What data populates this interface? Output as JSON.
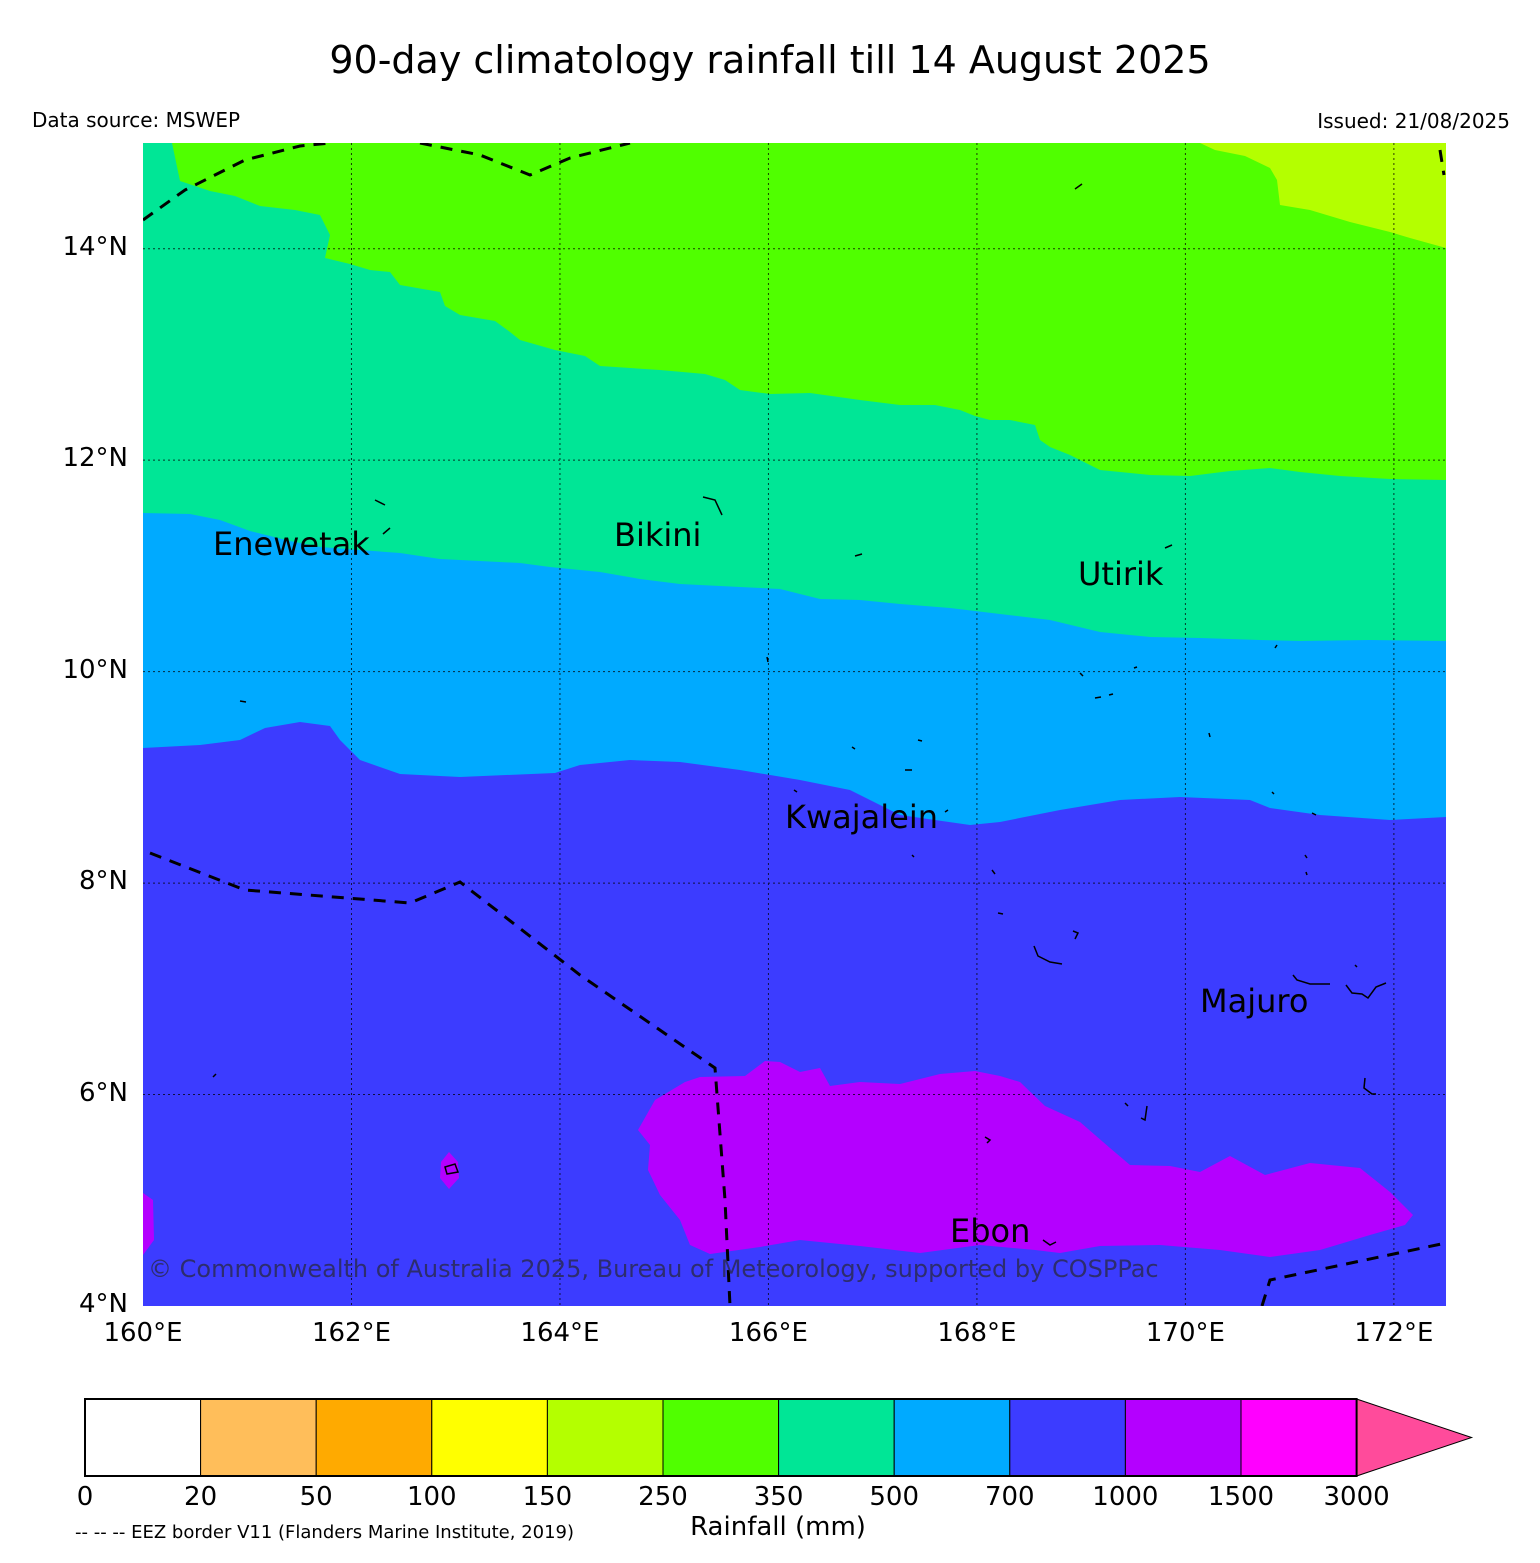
{
  "header": {
    "title": "90-day climatology rainfall till 14 August 2025",
    "source": "Data source: MSWEP",
    "issued": "Issued: 21/08/2025"
  },
  "map": {
    "lon_range": [
      160,
      172.5
    ],
    "lat_range": [
      4,
      15
    ],
    "gridlines": true,
    "lon_ticks": [
      {
        "value": 160,
        "label": "160°E"
      },
      {
        "value": 162,
        "label": "162°E"
      },
      {
        "value": 164,
        "label": "164°E"
      },
      {
        "value": 166,
        "label": "166°E"
      },
      {
        "value": 168,
        "label": "168°E"
      },
      {
        "value": 170,
        "label": "170°E"
      },
      {
        "value": 172,
        "label": "172°E"
      }
    ],
    "lat_ticks": [
      {
        "value": 4,
        "label": "4°N"
      },
      {
        "value": 6,
        "label": "6°N"
      },
      {
        "value": 8,
        "label": "8°N"
      },
      {
        "value": 10,
        "label": "10°N"
      },
      {
        "value": 12,
        "label": "12°N"
      },
      {
        "value": 14,
        "label": "14°N"
      }
    ],
    "places": [
      {
        "name": "Enewetak",
        "lon": 162.3,
        "lat": 11.3
      },
      {
        "name": "Bikini",
        "lon": 165.5,
        "lat": 11.4
      },
      {
        "name": "Utirik",
        "lon": 169.8,
        "lat": 11.1
      },
      {
        "name": "Kwajalein",
        "lon": 167.7,
        "lat": 8.7
      },
      {
        "name": "Majuro",
        "lon": 171.2,
        "lat": 7.0
      },
      {
        "name": "Ebon",
        "lon": 168.6,
        "lat": 4.6
      }
    ],
    "copyright": "© Commonwealth of Australia 2025, Bureau of Meteorology, supported by COSPPac"
  },
  "colorbar": {
    "boundaries": [
      "0",
      "20",
      "50",
      "100",
      "150",
      "250",
      "350",
      "500",
      "700",
      "1000",
      "1500",
      "3000"
    ],
    "colors": [
      "#ffffff",
      "#ffbe5a",
      "#ffaa00",
      "#ffff00",
      "#b4ff00",
      "#50ff00",
      "#00e696",
      "#00aaff",
      "#3c3cff",
      "#b400ff",
      "#ff00ff",
      "#ff4b9b"
    ],
    "extend": "max",
    "title": "Rainfall (mm)",
    "eez_note": "-- -- -- EEZ border V11 (Flanders Marine Institute, 2019)"
  }
}
